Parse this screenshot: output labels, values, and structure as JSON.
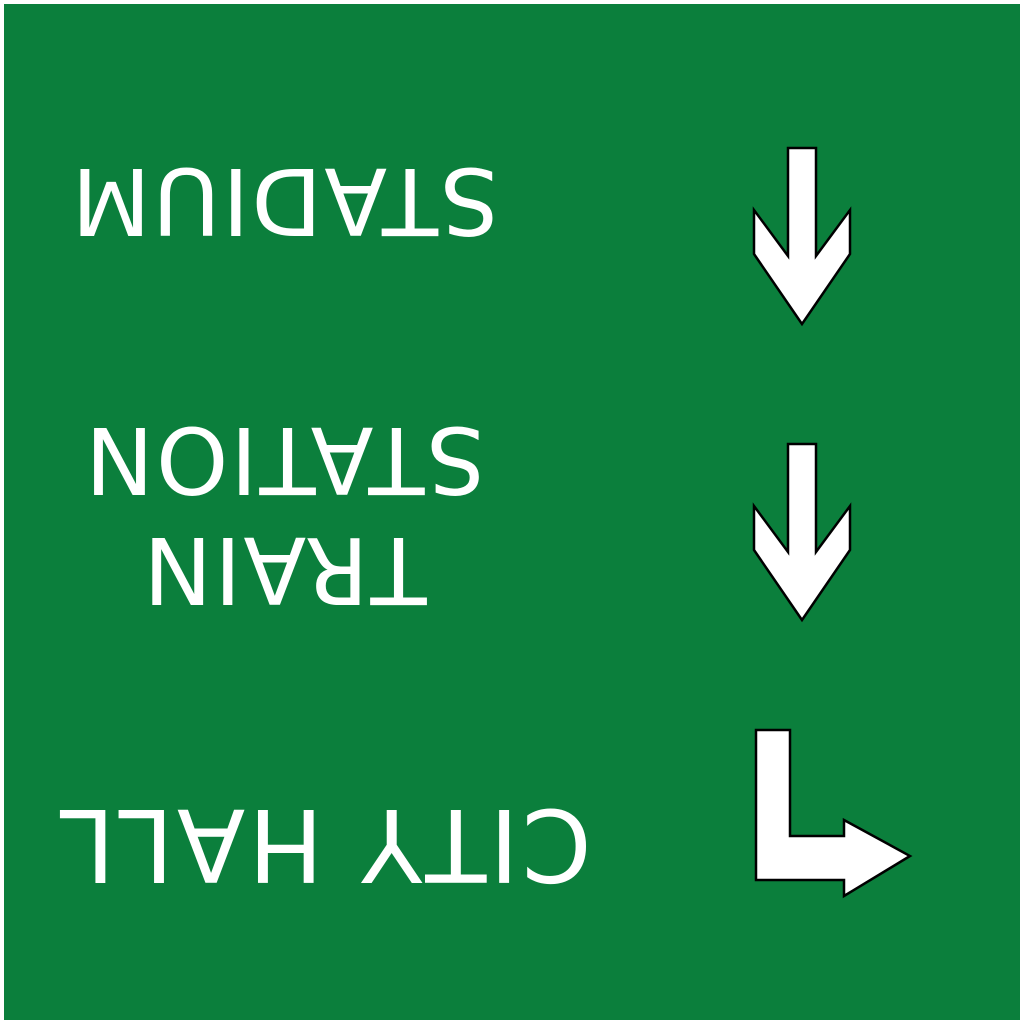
{
  "sign": {
    "background_color": "#0b7f3c",
    "text_color": "#ffffff",
    "orientation": "upside-down"
  },
  "destinations": [
    {
      "label": "STADIUM",
      "direction": "down",
      "icon": "arrow-down-icon"
    },
    {
      "label_line1": "TRAIN",
      "label_line2": "STATION",
      "direction": "down",
      "icon": "arrow-down-icon"
    },
    {
      "label": "CITY HALL",
      "direction": "down-then-right",
      "icon": "arrow-turn-right-icon"
    }
  ]
}
